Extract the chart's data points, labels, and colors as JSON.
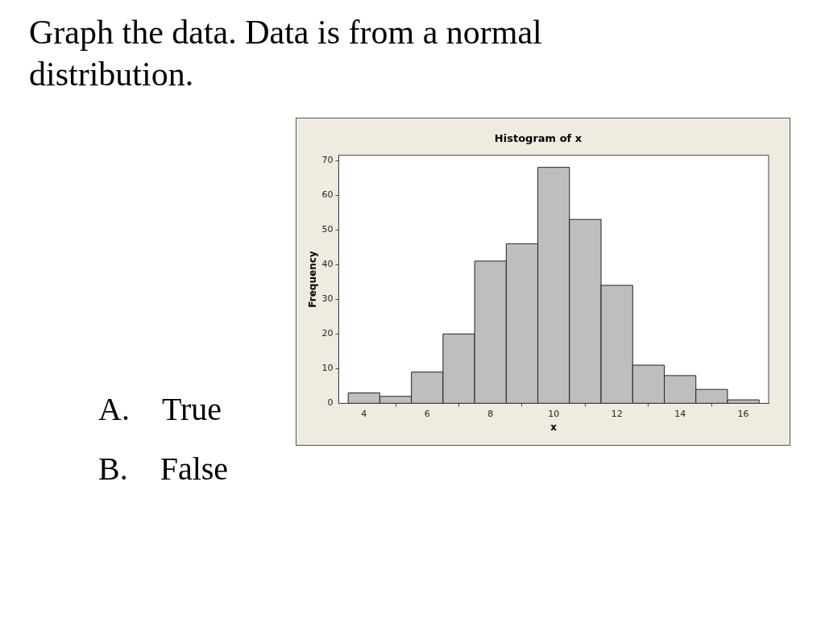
{
  "chart_data": {
    "type": "histogram",
    "title": "Histogram of x",
    "xlabel": "x",
    "ylabel": "Frequency",
    "bins": [
      3.5,
      4.5,
      5.5,
      6.5,
      7.5,
      8.5,
      9.5,
      10.5,
      11.5,
      12.5,
      13.5,
      14.5,
      15.5,
      16.5
    ],
    "values": [
      3,
      2,
      9,
      20,
      41,
      46,
      68,
      53,
      34,
      11,
      8,
      4,
      1
    ],
    "color": "#bebebe",
    "xlim": [
      3.2,
      16.8
    ],
    "xticks": [
      4,
      6,
      8,
      10,
      12,
      14,
      16
    ],
    "ylim": [
      0,
      71.5
    ],
    "yticks": [
      0,
      10,
      20,
      30,
      40,
      50,
      60,
      70
    ],
    "grid": false,
    "legend": false,
    "annotations": [
      "Graph the data.  Data is from a normal distribution.",
      "A. True",
      "B. False"
    ]
  }
}
